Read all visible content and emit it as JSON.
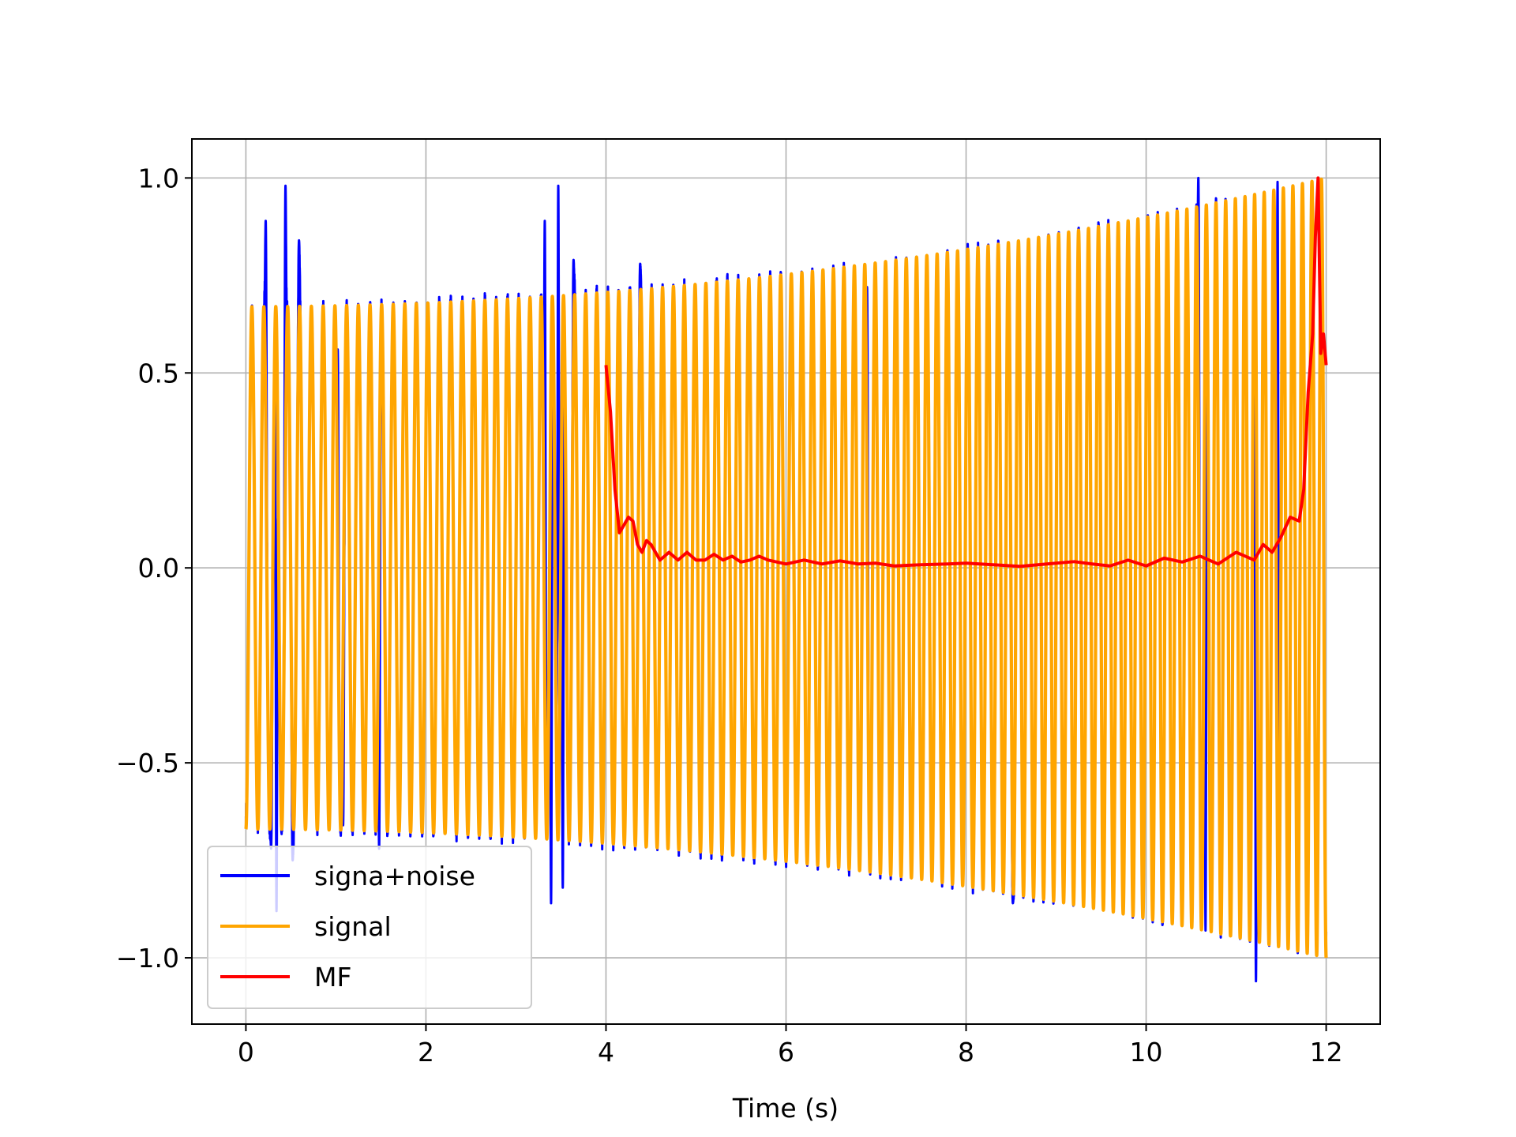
{
  "chart_data": {
    "type": "line",
    "title": "",
    "xlabel": "Time (s)",
    "ylabel": "",
    "xlim": [
      -0.6,
      12.6
    ],
    "ylim": [
      -1.17,
      1.1
    ],
    "xticks": [
      0,
      2,
      4,
      6,
      8,
      10,
      12
    ],
    "yticks": [
      -1.0,
      -0.5,
      0.0,
      0.5,
      1.0
    ],
    "xtick_labels": [
      "0",
      "2",
      "4",
      "6",
      "8",
      "10",
      "12"
    ],
    "ytick_labels": [
      "−1.0",
      "−0.5",
      "0.0",
      "0.5",
      "1.0"
    ],
    "grid": true,
    "legend_position": "lower-left",
    "series": [
      {
        "name": "signa+noise",
        "color": "#0000ff",
        "kind": "noisy_chirp",
        "x_range": [
          0,
          12
        ],
        "spikes": [
          {
            "x": 0.22,
            "y": 0.89
          },
          {
            "x": 0.28,
            "y": -0.72
          },
          {
            "x": 0.44,
            "y": 0.98
          },
          {
            "x": 0.34,
            "y": -0.88
          },
          {
            "x": 0.59,
            "y": 0.84
          },
          {
            "x": 0.52,
            "y": -0.75
          },
          {
            "x": 1.02,
            "y": 0.56
          },
          {
            "x": 1.08,
            "y": -0.66
          },
          {
            "x": 1.48,
            "y": -0.72
          },
          {
            "x": 3.32,
            "y": 0.89
          },
          {
            "x": 3.47,
            "y": 0.98
          },
          {
            "x": 3.39,
            "y": -0.86
          },
          {
            "x": 3.52,
            "y": -0.82
          },
          {
            "x": 3.64,
            "y": 0.79
          },
          {
            "x": 4.38,
            "y": 0.78
          },
          {
            "x": 6.9,
            "y": 0.72
          },
          {
            "x": 8.52,
            "y": -0.86
          },
          {
            "x": 10.58,
            "y": 1.0
          },
          {
            "x": 10.66,
            "y": -0.93
          },
          {
            "x": 11.22,
            "y": -1.06
          },
          {
            "x": 11.46,
            "y": 0.99
          }
        ]
      },
      {
        "name": "signal",
        "color": "#ffa500",
        "kind": "chirp",
        "x_range": [
          0,
          12
        ],
        "amplitude_start": 0.67,
        "amplitude_end": 1.0,
        "cycles_per_second_start": 7.5,
        "cycles_per_second_end": 9.5
      },
      {
        "name": "MF",
        "color": "#ff0000",
        "kind": "line",
        "points": [
          [
            4.0,
            0.52
          ],
          [
            4.05,
            0.4
          ],
          [
            4.1,
            0.2
          ],
          [
            4.15,
            0.09
          ],
          [
            4.2,
            0.11
          ],
          [
            4.25,
            0.13
          ],
          [
            4.3,
            0.12
          ],
          [
            4.35,
            0.06
          ],
          [
            4.4,
            0.04
          ],
          [
            4.45,
            0.07
          ],
          [
            4.5,
            0.06
          ],
          [
            4.6,
            0.02
          ],
          [
            4.7,
            0.04
          ],
          [
            4.8,
            0.02
          ],
          [
            4.9,
            0.04
          ],
          [
            5.0,
            0.02
          ],
          [
            5.1,
            0.02
          ],
          [
            5.2,
            0.035
          ],
          [
            5.3,
            0.02
          ],
          [
            5.4,
            0.03
          ],
          [
            5.5,
            0.015
          ],
          [
            5.6,
            0.02
          ],
          [
            5.7,
            0.03
          ],
          [
            5.8,
            0.02
          ],
          [
            6.0,
            0.01
          ],
          [
            6.2,
            0.02
          ],
          [
            6.4,
            0.01
          ],
          [
            6.6,
            0.018
          ],
          [
            6.8,
            0.01
          ],
          [
            7.0,
            0.012
          ],
          [
            7.2,
            0.005
          ],
          [
            7.5,
            0.008
          ],
          [
            7.8,
            0.01
          ],
          [
            8.0,
            0.012
          ],
          [
            8.3,
            0.008
          ],
          [
            8.6,
            0.004
          ],
          [
            8.9,
            0.01
          ],
          [
            9.2,
            0.016
          ],
          [
            9.4,
            0.01
          ],
          [
            9.6,
            0.005
          ],
          [
            9.8,
            0.02
          ],
          [
            10.0,
            0.005
          ],
          [
            10.2,
            0.025
          ],
          [
            10.4,
            0.015
          ],
          [
            10.6,
            0.03
          ],
          [
            10.8,
            0.01
          ],
          [
            11.0,
            0.04
          ],
          [
            11.2,
            0.02
          ],
          [
            11.3,
            0.06
          ],
          [
            11.4,
            0.04
          ],
          [
            11.5,
            0.08
          ],
          [
            11.6,
            0.13
          ],
          [
            11.7,
            0.12
          ],
          [
            11.75,
            0.2
          ],
          [
            11.8,
            0.45
          ],
          [
            11.85,
            0.6
          ],
          [
            11.88,
            0.85
          ],
          [
            11.91,
            1.0
          ],
          [
            11.94,
            0.55
          ],
          [
            11.97,
            0.6
          ],
          [
            12.0,
            0.52
          ]
        ]
      }
    ]
  }
}
